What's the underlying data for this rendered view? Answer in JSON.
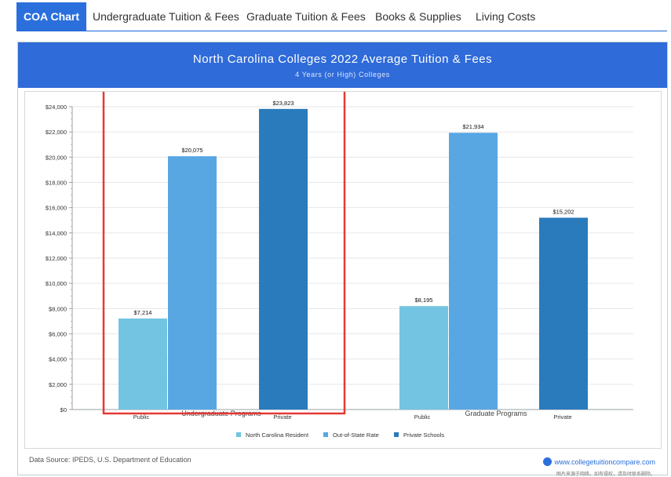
{
  "tabs": [
    {
      "label": "COA Chart",
      "active": true
    },
    {
      "label": "Undergraduate Tuition & Fees",
      "active": false
    },
    {
      "label": "Graduate Tuition & Fees",
      "active": false
    },
    {
      "label": "Books & Supplies",
      "active": false
    },
    {
      "label": "Living Costs",
      "active": false
    }
  ],
  "header": {
    "title": "North Carolina Colleges 2022 Average Tuition & Fees",
    "subtitle": "4 Years (or High)  Colleges"
  },
  "footer": {
    "source": "Data Source: IPEDS, U.S. Department of Education",
    "brand_url": "www.collegetuitioncompare.com",
    "brand_note": "图片来源于网络，如有侵权，请及时联系删除。"
  },
  "colors": {
    "resident": "#72c4e2",
    "out_of_state": "#58a7e3",
    "private": "#2a7bbc",
    "highlight": "#e53935",
    "header": "#2f6bd9"
  },
  "chart_data": {
    "type": "bar",
    "title": "North Carolina Colleges 2022 Average Tuition & Fees",
    "subtitle": "4 Years (or High)  Colleges",
    "ylim": [
      0,
      24000
    ],
    "y_ticks": [
      "$0",
      "$2,000",
      "$4,000",
      "$6,000",
      "$8,000",
      "$10,000",
      "$12,000",
      "$14,000",
      "$16,000",
      "$18,000",
      "$20,000",
      "$22,000",
      "$24,000"
    ],
    "groups": [
      {
        "label": "Undergraduate Programs",
        "bars": [
          {
            "series": "North Carolina Resident",
            "value": 7214,
            "label": "$7,214"
          },
          {
            "series": "Out-of-State Rate",
            "value": 20075,
            "label": "$20,075"
          },
          {
            "series": "Private Schools",
            "value": 23823,
            "label": "$23,823"
          }
        ],
        "tick_labels": [
          "Public",
          "Private"
        ]
      },
      {
        "label": "Graduate Programs",
        "bars": [
          {
            "series": "North Carolina Resident",
            "value": 8195,
            "label": "$8,195"
          },
          {
            "series": "Out-of-State Rate",
            "value": 21934,
            "label": "$21,934"
          },
          {
            "series": "Private Schools",
            "value": 15202,
            "label": "$15,202"
          }
        ],
        "tick_labels": [
          "Public",
          "Private"
        ]
      }
    ],
    "legend": [
      "North Carolina Resident",
      "Out-of-State Rate",
      "Private Schools"
    ],
    "legend_position": "bottom-center",
    "highlighted_group": "Undergraduate Programs"
  }
}
